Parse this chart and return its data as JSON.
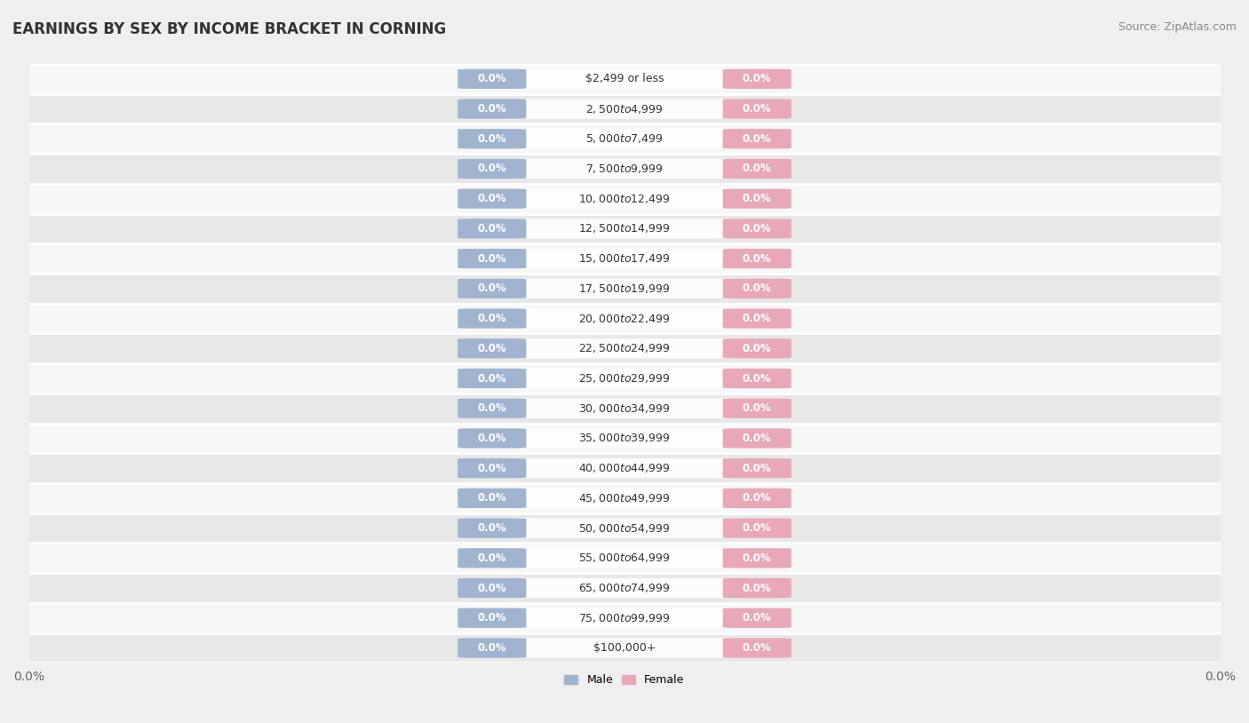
{
  "title": "EARNINGS BY SEX BY INCOME BRACKET IN CORNING",
  "source": "Source: ZipAtlas.com",
  "categories": [
    "$2,499 or less",
    "$2,500 to $4,999",
    "$5,000 to $7,499",
    "$7,500 to $9,999",
    "$10,000 to $12,499",
    "$12,500 to $14,999",
    "$15,000 to $17,499",
    "$17,500 to $19,999",
    "$20,000 to $22,499",
    "$22,500 to $24,999",
    "$25,000 to $29,999",
    "$30,000 to $34,999",
    "$35,000 to $39,999",
    "$40,000 to $44,999",
    "$45,000 to $49,999",
    "$50,000 to $54,999",
    "$55,000 to $64,999",
    "$65,000 to $74,999",
    "$75,000 to $99,999",
    "$100,000+"
  ],
  "male_values": [
    0.0,
    0.0,
    0.0,
    0.0,
    0.0,
    0.0,
    0.0,
    0.0,
    0.0,
    0.0,
    0.0,
    0.0,
    0.0,
    0.0,
    0.0,
    0.0,
    0.0,
    0.0,
    0.0,
    0.0
  ],
  "female_values": [
    0.0,
    0.0,
    0.0,
    0.0,
    0.0,
    0.0,
    0.0,
    0.0,
    0.0,
    0.0,
    0.0,
    0.0,
    0.0,
    0.0,
    0.0,
    0.0,
    0.0,
    0.0,
    0.0,
    0.0
  ],
  "male_color": "#a0b4d0",
  "female_color": "#e8a8b8",
  "male_label": "Male",
  "female_label": "Female",
  "background_color": "#efefef",
  "row_bg_light": "#f7f7f7",
  "row_bg_dark": "#e8e8e8",
  "title_fontsize": 12,
  "source_fontsize": 9,
  "cat_fontsize": 9,
  "pct_fontsize": 8.5,
  "legend_fontsize": 9
}
